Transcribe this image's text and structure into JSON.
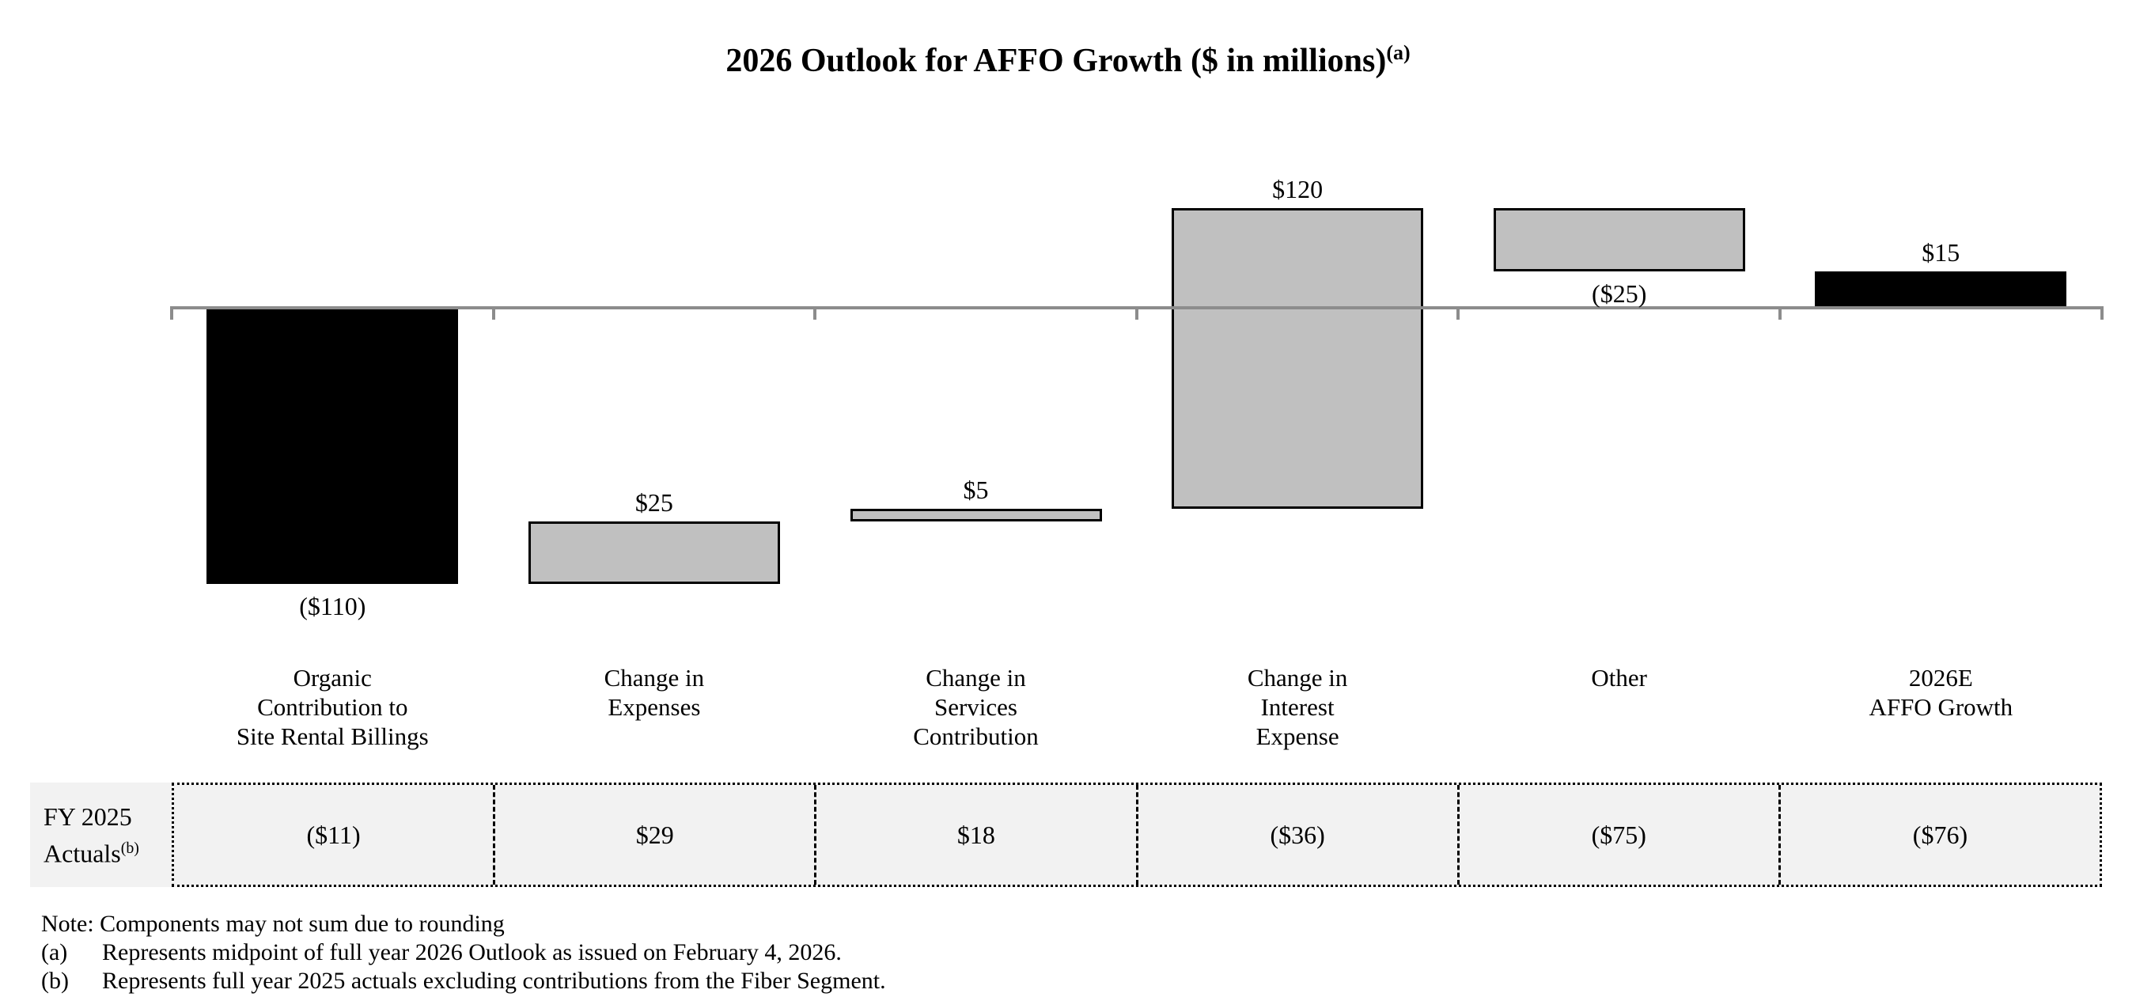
{
  "title": {
    "text": "2026 Outlook for AFFO Growth ($ in millions)",
    "footnote_ref": "(a)"
  },
  "chart_data": {
    "type": "bar",
    "subtype": "waterfall",
    "title": "2026 Outlook for AFFO Growth ($ in millions)",
    "unit": "USD millions",
    "legend": "none",
    "gridlines": false,
    "y_axis_labels_visible": false,
    "ylim": [
      -120,
      45
    ],
    "categories": [
      "Organic\nContribution to\nSite Rental Billings",
      "Change in\nExpenses",
      "Change in\nServices\nContribution",
      "Change in\nInterest\nExpense",
      "Other",
      "2026E\nAFFO Growth"
    ],
    "values": [
      -110,
      25,
      5,
      120,
      -25,
      15
    ],
    "segments": [
      {
        "from": 0,
        "to": -110
      },
      {
        "from": -110,
        "to": -85
      },
      {
        "from": -85,
        "to": -80
      },
      {
        "from": -80,
        "to": 40
      },
      {
        "from": 40,
        "to": 15
      },
      {
        "from": 0,
        "to": 15
      }
    ],
    "data_labels": [
      "($110)",
      "$25",
      "$5",
      "$120",
      "($25)",
      "$15"
    ],
    "label_side": [
      "below",
      "above",
      "above",
      "above",
      "below",
      "above"
    ],
    "bar_colors": [
      "#000000",
      "#c0c0c0",
      "#c0c0c0",
      "#c0c0c0",
      "#c0c0c0",
      "#000000"
    ],
    "bar_border_color": "#000000",
    "axis_color": "#8c8c8c"
  },
  "table": {
    "row_header_lines": [
      "FY 2025",
      "Actuals"
    ],
    "row_header_footnote_ref": "(b)",
    "values": [
      "($11)",
      "$29",
      "$18",
      "($36)",
      "($75)",
      "($76)"
    ],
    "background": "#f2f2f2"
  },
  "notes": {
    "note": "Note: Components may not sum due to rounding",
    "footnotes": [
      {
        "label": "(a)",
        "text": "Represents midpoint of full year 2026 Outlook as issued on February 4, 2026."
      },
      {
        "label": "(b)",
        "text": "Represents full year 2025 actuals excluding contributions from the Fiber Segment."
      }
    ]
  }
}
